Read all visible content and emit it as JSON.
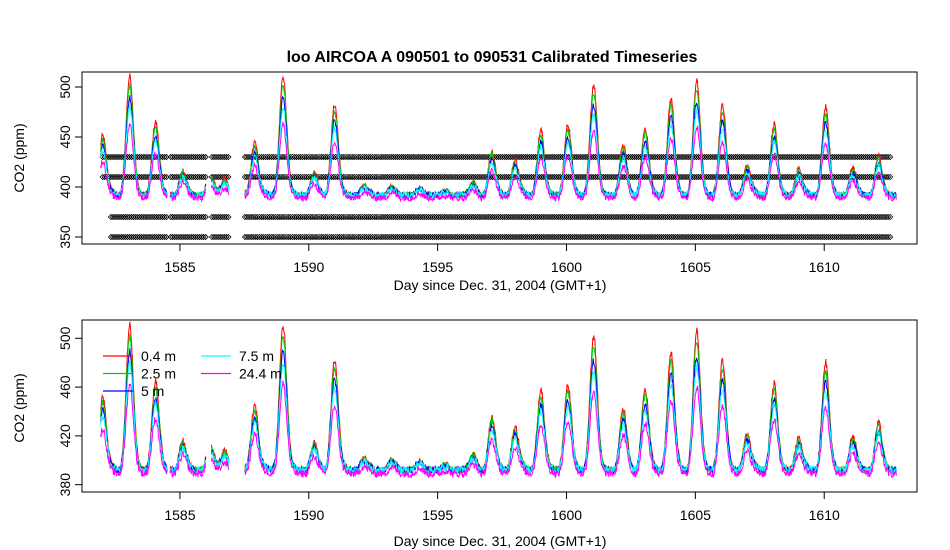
{
  "chart_data": [
    {
      "type": "line",
      "title": "loo   AIRCOA  A    090501  to  090531   Calibrated Timeseries",
      "xlabel": "Day since Dec. 31, 2004 (GMT+1)",
      "ylabel": "CO2 (ppm)",
      "xlim": [
        1581.2,
        1613.6
      ],
      "ylim": [
        343,
        515
      ],
      "xticks": [
        "1585",
        "1590",
        "1595",
        "1600",
        "1605",
        "1610"
      ],
      "yticks": [
        "350",
        "400",
        "450",
        "500"
      ],
      "grid": false,
      "series": [
        {
          "name": "0.4 m",
          "color": "#ff0000"
        },
        {
          "name": "2.5 m",
          "color": "#00cd00"
        },
        {
          "name": "5 m",
          "color": "#0000ff"
        },
        {
          "name": "7.5 m",
          "color": "#00ffff"
        },
        {
          "name": "24.4 m",
          "color": "#ff00ff"
        }
      ],
      "flag_levels": [
        350,
        370,
        410,
        430
      ],
      "flag_marker": "open-diamond",
      "gaps": [
        [
          1581.2,
          1581.9
        ],
        [
          1584.5,
          1584.6
        ],
        [
          1586.0,
          1586.2
        ],
        [
          1586.9,
          1587.5
        ],
        [
          1612.8,
          1613.6
        ]
      ],
      "peaks": [
        {
          "x": 1582.0,
          "y": 452
        },
        {
          "x": 1583.05,
          "y": 511
        },
        {
          "x": 1584.05,
          "y": 465
        },
        {
          "x": 1585.1,
          "y": 415
        },
        {
          "x": 1586.15,
          "y": 412
        },
        {
          "x": 1586.75,
          "y": 410
        },
        {
          "x": 1587.9,
          "y": 447
        },
        {
          "x": 1589.0,
          "y": 512
        },
        {
          "x": 1590.2,
          "y": 412
        },
        {
          "x": 1591.0,
          "y": 483
        },
        {
          "x": 1592.1,
          "y": 400
        },
        {
          "x": 1593.2,
          "y": 398
        },
        {
          "x": 1594.3,
          "y": 396
        },
        {
          "x": 1595.4,
          "y": 393
        },
        {
          "x": 1596.4,
          "y": 402
        },
        {
          "x": 1597.1,
          "y": 435
        },
        {
          "x": 1598.0,
          "y": 428
        },
        {
          "x": 1599.0,
          "y": 458
        },
        {
          "x": 1600.05,
          "y": 462
        },
        {
          "x": 1601.05,
          "y": 502
        },
        {
          "x": 1602.2,
          "y": 440
        },
        {
          "x": 1603.05,
          "y": 458
        },
        {
          "x": 1604.05,
          "y": 488
        },
        {
          "x": 1605.05,
          "y": 506
        },
        {
          "x": 1606.05,
          "y": 482
        },
        {
          "x": 1607.0,
          "y": 422
        },
        {
          "x": 1608.05,
          "y": 463
        },
        {
          "x": 1609.0,
          "y": 418
        },
        {
          "x": 1610.05,
          "y": 480
        },
        {
          "x": 1611.1,
          "y": 418
        },
        {
          "x": 1612.1,
          "y": 430
        }
      ],
      "baseline_ppm": 392
    },
    {
      "type": "line",
      "title": "",
      "xlabel": "Day since Dec. 31, 2004 (GMT+1)",
      "ylabel": "CO2 (ppm)",
      "xlim": [
        1581.2,
        1613.6
      ],
      "ylim": [
        374,
        515
      ],
      "xticks": [
        "1585",
        "1590",
        "1595",
        "1600",
        "1605",
        "1610"
      ],
      "yticks": [
        "380",
        "420",
        "460",
        "500"
      ],
      "grid": false,
      "legend": "top-left",
      "series": [
        {
          "name": "0.4 m",
          "color": "#ff0000"
        },
        {
          "name": "2.5 m",
          "color": "#00cd00"
        },
        {
          "name": "5 m",
          "color": "#0000ff"
        },
        {
          "name": "7.5 m",
          "color": "#00ffff"
        },
        {
          "name": "24.4 m",
          "color": "#ff00ff"
        }
      ]
    }
  ]
}
